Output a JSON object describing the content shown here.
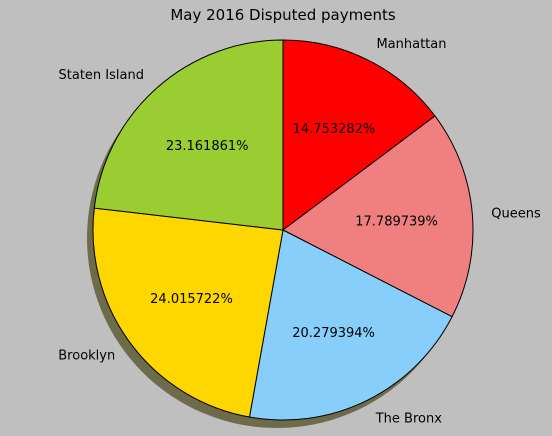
{
  "chart_data": {
    "type": "pie",
    "title": "May 2016 Disputed payments",
    "categories": [
      "Manhattan",
      "Queens",
      "The Bronx",
      "Brooklyn",
      "Staten Island"
    ],
    "values": [
      14.753282,
      17.789739,
      20.279394,
      24.015722,
      23.161861
    ],
    "value_labels": [
      "14.753282%",
      "17.789739%",
      "20.279394%",
      "24.015722%",
      "23.161861%"
    ],
    "colors": [
      "#ff0000",
      "#f08080",
      "#87cefa",
      "#ffd700",
      "#9acd32"
    ],
    "start_angle_deg": 90,
    "direction": "clockwise",
    "shadow": true
  }
}
